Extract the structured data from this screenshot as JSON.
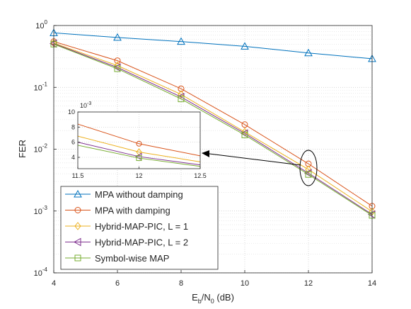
{
  "chart_data": {
    "type": "line",
    "xlabel": {
      "main": "E",
      "sub": "b",
      "mid": "/N",
      "sub2": "0",
      "tail": " (dB)"
    },
    "ylabel": "FER",
    "x_ticks": [
      "4",
      "6",
      "8",
      "10",
      "12",
      "14"
    ],
    "y_ticks": [
      {
        "base": "10",
        "exp": "0"
      },
      {
        "base": "10",
        "exp": "-1"
      },
      {
        "base": "10",
        "exp": "-2"
      },
      {
        "base": "10",
        "exp": "-3"
      },
      {
        "base": "10",
        "exp": "-4"
      }
    ],
    "xlim": [
      4,
      14
    ],
    "ylim": [
      0.0001,
      1
    ],
    "y_scale": "log",
    "grid": true,
    "legend_position": "bottom-left",
    "series": [
      {
        "name": "MPA without damping",
        "color": "#0072BD",
        "marker": "triangle-up",
        "x": [
          4,
          6,
          8,
          10,
          12,
          14
        ],
        "y": [
          0.76,
          0.64,
          0.55,
          0.46,
          0.36,
          0.29
        ]
      },
      {
        "name": "MPA with damping",
        "color": "#D95319",
        "marker": "circle",
        "x": [
          4,
          6,
          8,
          10,
          12,
          14
        ],
        "y": [
          0.55,
          0.27,
          0.095,
          0.025,
          0.0058,
          0.0012
        ]
      },
      {
        "name": "Hybrid-MAP-PIC, L = 1",
        "color": "#EDB120",
        "marker": "diamond",
        "x": [
          4,
          6,
          8,
          10,
          12,
          14
        ],
        "y": [
          0.52,
          0.225,
          0.077,
          0.019,
          0.0047,
          0.00098
        ]
      },
      {
        "name": "Hybrid-MAP-PIC, L = 2",
        "color": "#7E2F8E",
        "marker": "triangle-left",
        "x": [
          4,
          6,
          8,
          10,
          12,
          14
        ],
        "y": [
          0.51,
          0.21,
          0.07,
          0.018,
          0.0041,
          0.00088
        ]
      },
      {
        "name": "Symbol-wise MAP",
        "color": "#77AC30",
        "marker": "square",
        "x": [
          4,
          6,
          8,
          10,
          12,
          14
        ],
        "y": [
          0.5,
          0.2,
          0.065,
          0.017,
          0.0039,
          0.00085
        ]
      }
    ],
    "inset": {
      "xlim": [
        11.5,
        12.5
      ],
      "ylim": [
        0.0025,
        0.01
      ],
      "x_ticks": [
        "11.5",
        "12",
        "12.5"
      ],
      "y_ticks": [
        "4",
        "6",
        "8",
        "10"
      ],
      "y_multiplier": {
        "base": "10",
        "exp": "-3"
      },
      "series": [
        {
          "x": [
            11.5,
            12,
            12.5
          ],
          "y": [
            0.0084,
            0.0058,
            0.0042
          ]
        },
        {
          "x": [
            11.5,
            12,
            12.5
          ],
          "y": [
            0.0068,
            0.0047,
            0.0034
          ]
        },
        {
          "x": [
            11.5,
            12,
            12.5
          ],
          "y": [
            0.006,
            0.0041,
            0.003
          ]
        },
        {
          "x": [
            11.5,
            12,
            12.5
          ],
          "y": [
            0.0056,
            0.0039,
            0.0028
          ]
        }
      ]
    }
  }
}
